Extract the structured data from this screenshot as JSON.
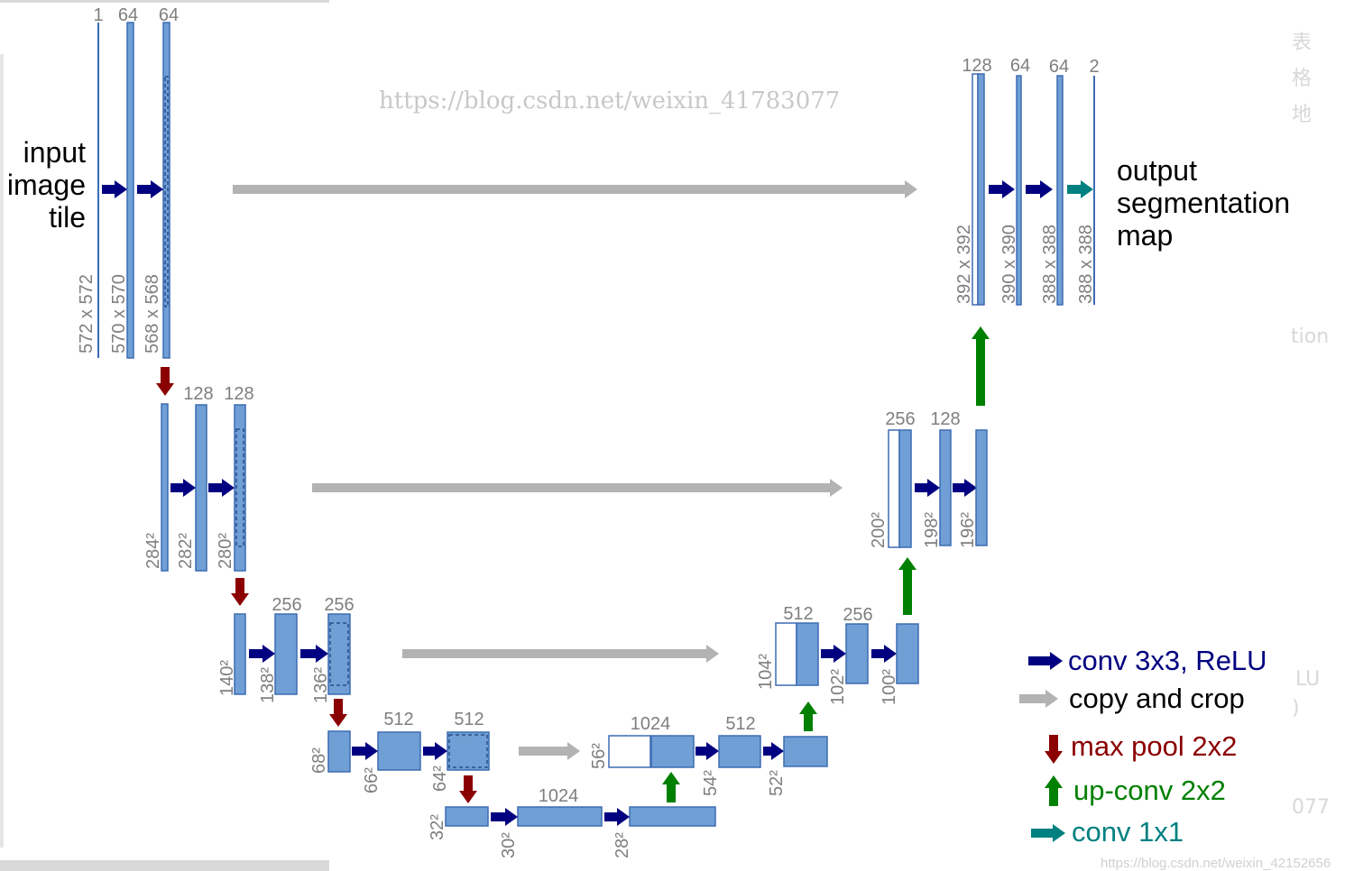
{
  "colors": {
    "block_fill": "#6f9fd4",
    "block_stroke": "#3d6bb3",
    "conv_arrow": "#000080",
    "copy_arrow": "#b3b3b3",
    "pool_arrow": "#8b0000",
    "upconv_arrow": "#008000",
    "conv1x1_arrow": "#008080"
  },
  "input_label": [
    "input",
    "image",
    "tile"
  ],
  "output_label": [
    "output",
    "segmentation",
    "map"
  ],
  "encoder": [
    {
      "channels": [
        "1",
        "64",
        "64"
      ],
      "sizes": [
        "572 x 572",
        "570 x 570",
        "568 x 568"
      ]
    },
    {
      "channels": [
        "128",
        "128"
      ],
      "sizes": [
        "284²",
        "282²",
        "280²"
      ]
    },
    {
      "channels": [
        "256",
        "256"
      ],
      "sizes": [
        "140²",
        "138²",
        "136²"
      ]
    },
    {
      "channels": [
        "512",
        "512"
      ],
      "sizes": [
        "68²",
        "66²",
        "64²"
      ]
    },
    {
      "channels": [
        "1024"
      ],
      "sizes": [
        "32²",
        "30²",
        "28²"
      ]
    }
  ],
  "decoder": [
    {
      "channels": [
        "1024",
        "512"
      ],
      "sizes": [
        "56²",
        "54²",
        "52²"
      ]
    },
    {
      "channels": [
        "512",
        "256"
      ],
      "sizes": [
        "104²",
        "102²",
        "100²"
      ]
    },
    {
      "channels": [
        "256",
        "128"
      ],
      "sizes": [
        "200²",
        "198²",
        "196²"
      ]
    },
    {
      "channels": [
        "128",
        "64",
        "64",
        "2"
      ],
      "sizes": [
        "392 x 392",
        "390 x 390",
        "388 x 388",
        "388 x 388"
      ]
    }
  ],
  "legend": [
    {
      "icon": "conv-arrow-icon",
      "label": "conv 3x3, ReLU"
    },
    {
      "icon": "copy-arrow-icon",
      "label": "copy and crop"
    },
    {
      "icon": "max-pool-arrow-icon",
      "label": "max pool 2x2"
    },
    {
      "icon": "up-conv-arrow-icon",
      "label": "up-conv 2x2"
    },
    {
      "icon": "conv1x1-arrow-icon",
      "label": "conv 1x1"
    }
  ],
  "watermarks": {
    "overlay": "https://blog.csdn.net/weixin_41783077",
    "corner": "https://blog.csdn.net/weixin_42152656"
  },
  "background_fragments": [
    "表",
    "格",
    "地",
    "tion",
    "LU",
    ")",
    "077"
  ]
}
